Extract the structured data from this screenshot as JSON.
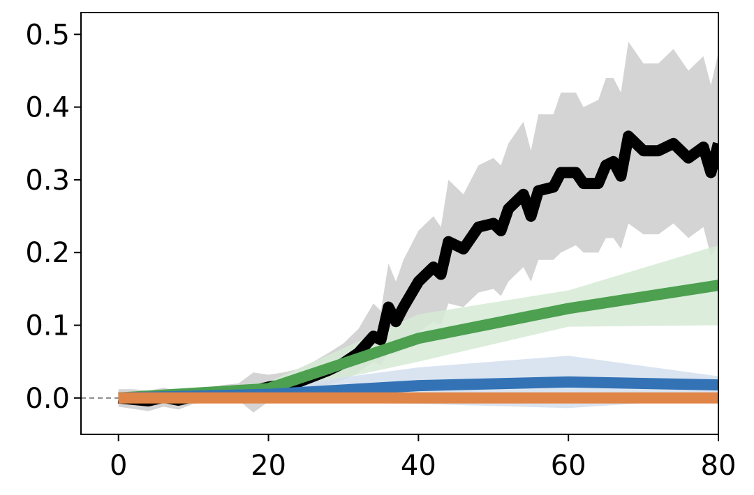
{
  "chart_data": {
    "type": "line",
    "title": "",
    "xlabel": "",
    "ylabel": "",
    "xlim": [
      -5,
      80
    ],
    "ylim": [
      -0.05,
      0.53
    ],
    "xticks": [
      0,
      20,
      40,
      60,
      80
    ],
    "xtick_labels": [
      "0",
      "20",
      "40",
      "60",
      "80"
    ],
    "yticks": [
      0.0,
      0.1,
      0.2,
      0.3,
      0.4,
      0.5
    ],
    "ytick_labels": [
      "0.0",
      "0.1",
      "0.2",
      "0.3",
      "0.4",
      "0.5"
    ],
    "grid": false,
    "legend": "none",
    "reference_line": {
      "y": 0,
      "style": "dashed",
      "color": "#888888"
    },
    "series": [
      {
        "color": "#000000",
        "band_color": "#cccccc",
        "x": [
          0,
          2,
          4,
          6,
          8,
          10,
          12,
          14,
          16,
          18,
          20,
          22,
          24,
          26,
          28,
          30,
          32,
          34,
          35,
          36,
          37,
          38,
          40,
          42,
          43,
          44,
          46,
          48,
          50,
          51,
          52,
          54,
          55,
          56,
          58,
          59,
          60,
          61,
          62,
          64,
          65,
          66,
          67,
          68,
          70,
          72,
          74,
          76,
          78,
          79,
          80
        ],
        "y": [
          0.0,
          -0.002,
          -0.004,
          0.001,
          -0.003,
          0.002,
          0.003,
          0.006,
          0.008,
          0.01,
          0.015,
          0.018,
          0.022,
          0.03,
          0.038,
          0.048,
          0.062,
          0.085,
          0.08,
          0.125,
          0.105,
          0.125,
          0.16,
          0.18,
          0.17,
          0.215,
          0.205,
          0.235,
          0.24,
          0.23,
          0.26,
          0.28,
          0.25,
          0.285,
          0.29,
          0.31,
          0.31,
          0.31,
          0.295,
          0.295,
          0.32,
          0.325,
          0.305,
          0.36,
          0.34,
          0.34,
          0.35,
          0.33,
          0.345,
          0.31,
          0.35
        ],
        "lower": [
          -0.012,
          -0.015,
          -0.018,
          -0.012,
          -0.016,
          -0.008,
          -0.006,
          -0.004,
          -0.003,
          -0.02,
          -0.005,
          0.0,
          0.005,
          0.012,
          0.018,
          0.025,
          0.035,
          0.05,
          0.045,
          0.065,
          0.06,
          0.07,
          0.09,
          0.105,
          0.1,
          0.13,
          0.125,
          0.145,
          0.15,
          0.14,
          0.16,
          0.18,
          0.16,
          0.19,
          0.19,
          0.2,
          0.205,
          0.21,
          0.2,
          0.2,
          0.22,
          0.22,
          0.205,
          0.24,
          0.225,
          0.225,
          0.24,
          0.22,
          0.235,
          0.195,
          0.21
        ],
        "upper": [
          0.012,
          0.012,
          0.01,
          0.014,
          0.01,
          0.012,
          0.014,
          0.018,
          0.02,
          0.035,
          0.032,
          0.035,
          0.04,
          0.05,
          0.062,
          0.075,
          0.095,
          0.13,
          0.12,
          0.185,
          0.16,
          0.19,
          0.23,
          0.25,
          0.235,
          0.3,
          0.28,
          0.32,
          0.33,
          0.32,
          0.35,
          0.38,
          0.34,
          0.39,
          0.39,
          0.42,
          0.42,
          0.42,
          0.4,
          0.41,
          0.44,
          0.44,
          0.42,
          0.49,
          0.46,
          0.46,
          0.48,
          0.45,
          0.47,
          0.43,
          0.475
        ]
      },
      {
        "color": "#4ca04f",
        "band_color": "#d6ead6",
        "x": [
          0,
          20,
          40,
          60,
          80
        ],
        "y": [
          0.0,
          0.013,
          0.082,
          0.123,
          0.155
        ],
        "lower": [
          0.0,
          0.005,
          0.05,
          0.098,
          0.1
        ],
        "upper": [
          0.0,
          0.022,
          0.115,
          0.148,
          0.21
        ]
      },
      {
        "color": "#3373b5",
        "band_color": "#d3dfee",
        "x": [
          0,
          20,
          40,
          60,
          80
        ],
        "y": [
          0.0,
          0.005,
          0.017,
          0.022,
          0.018
        ],
        "lower": [
          0.0,
          -0.005,
          -0.008,
          -0.014,
          0.0
        ],
        "upper": [
          0.0,
          0.015,
          0.042,
          0.058,
          0.03
        ]
      },
      {
        "color": "#e08548",
        "band_color": "#f5dcc8",
        "x": [
          0,
          20,
          40,
          60,
          80
        ],
        "y": [
          0.0,
          0.0,
          0.0,
          0.0,
          0.0
        ],
        "lower": [
          0.0,
          0.0,
          0.0,
          0.0,
          0.0
        ],
        "upper": [
          0.0,
          0.0,
          0.0,
          0.0,
          0.0
        ]
      }
    ]
  }
}
